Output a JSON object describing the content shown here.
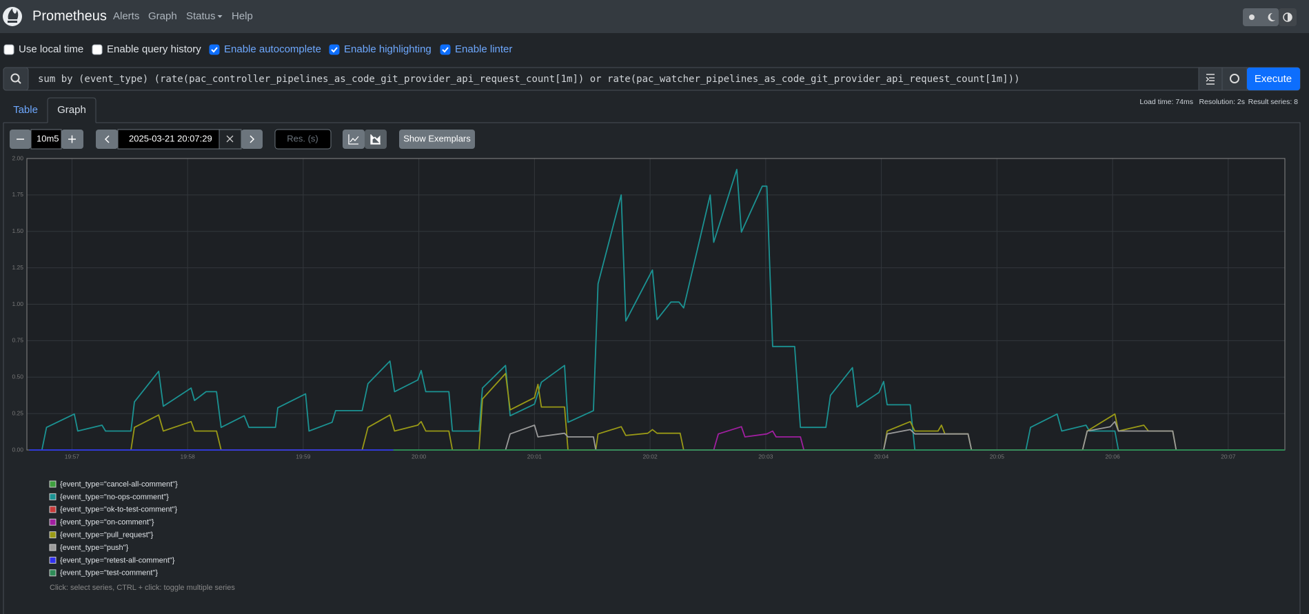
{
  "navbar": {
    "brand": "Prometheus",
    "links": [
      "Alerts",
      "Graph",
      "Status",
      "Help"
    ]
  },
  "options": [
    {
      "label": "Use local time",
      "checked": false
    },
    {
      "label": "Enable query history",
      "checked": false
    },
    {
      "label": "Enable autocomplete",
      "checked": true
    },
    {
      "label": "Enable highlighting",
      "checked": true
    },
    {
      "label": "Enable linter",
      "checked": true
    }
  ],
  "query": "sum by (event_type) (rate(pac_controller_pipelines_as_code_git_provider_api_request_count[1m]) or rate(pac_watcher_pipelines_as_code_git_provider_api_request_count[1m]))",
  "execute": "Execute",
  "tabs": [
    "Table",
    "Graph"
  ],
  "active_tab": 1,
  "stats": [
    "Load time: 74ms",
    "Resolution: 2s",
    "Result series: 8"
  ],
  "controls": {
    "range": "10m5",
    "end_time": "2025-03-21 20:07:29",
    "resolution_placeholder": "Res. (s)",
    "exemplars": "Show Exemplars"
  },
  "chart_data": {
    "type": "line",
    "xlim": [
      0.61,
      11.49
    ],
    "xticks": [
      {
        "value": 1,
        "label": "19:57"
      },
      {
        "value": 2,
        "label": "19:58"
      },
      {
        "value": 3,
        "label": "19:59"
      },
      {
        "value": 4,
        "label": "20:00"
      },
      {
        "value": 5,
        "label": "20:01"
      },
      {
        "value": 6,
        "label": "20:02"
      },
      {
        "value": 7,
        "label": "20:03"
      },
      {
        "value": 8,
        "label": "20:04"
      },
      {
        "value": 9,
        "label": "20:05"
      },
      {
        "value": 10,
        "label": "20:06"
      },
      {
        "value": 11,
        "label": "20:07"
      }
    ],
    "ylim": [
      0,
      2
    ],
    "yticks": [
      {
        "value": 0,
        "label": "0.00"
      },
      {
        "value": 0.25,
        "label": "0.25"
      },
      {
        "value": 0.5,
        "label": "0.50"
      },
      {
        "value": 0.75,
        "label": "0.75"
      },
      {
        "value": 1,
        "label": "1.00"
      },
      {
        "value": 1.25,
        "label": "1.25"
      },
      {
        "value": 1.5,
        "label": "1.50"
      },
      {
        "value": 1.75,
        "label": "1.75"
      },
      {
        "value": 2,
        "label": "2.00"
      }
    ],
    "grid": true,
    "series": [
      {
        "name": "{event_type=\"cancel-all-comment\"}",
        "color": "#3f9f3f",
        "x": [
          0.63,
          11.49
        ],
        "values": [
          0,
          0
        ]
      },
      {
        "name": "{event_type=\"no-ops-comment\"}",
        "color": "#1b9393",
        "x": [
          0.74,
          0.78,
          1.02,
          1.05,
          1.26,
          1.29,
          1.51,
          1.54,
          1.75,
          1.79,
          2.03,
          2.06,
          2.16,
          2.25,
          2.29,
          2.49,
          2.53,
          2.76,
          2.78,
          3.02,
          3.05,
          3.25,
          3.28,
          3.51,
          3.56,
          3.75,
          3.79,
          3.99,
          4.02,
          4.06,
          4.26,
          4.29,
          4.52,
          4.55,
          4.75,
          4.79,
          5.0,
          5.06,
          5.26,
          5.29,
          5.51,
          5.55,
          5.75,
          5.79,
          6.02,
          6.06,
          6.18,
          6.25,
          6.29,
          6.52,
          6.55,
          6.75,
          6.79,
          6.97,
          7.01,
          7.06,
          7.25,
          7.3,
          7.52,
          7.56,
          7.75,
          7.79,
          7.98,
          8.02,
          8.05,
          8.25,
          8.29,
          9.25,
          9.29,
          9.52,
          9.56,
          9.77,
          9.8,
          10.02,
          10.05
        ],
        "values": [
          0,
          0.155,
          0.247,
          0.13,
          0.17,
          0.13,
          0.13,
          0.33,
          0.54,
          0.3,
          0.425,
          0.34,
          0.4,
          0.4,
          0.155,
          0.235,
          0.155,
          0.155,
          0.29,
          0.385,
          0.13,
          0.19,
          0.27,
          0.27,
          0.455,
          0.61,
          0.4,
          0.48,
          0.545,
          0.4,
          0.4,
          0.13,
          0.13,
          0.425,
          0.58,
          0.235,
          0.315,
          0.465,
          0.58,
          0.19,
          0.27,
          1.14,
          1.75,
          0.885,
          1.235,
          0.895,
          1.015,
          1.015,
          0.975,
          1.75,
          1.425,
          1.925,
          1.495,
          1.81,
          1.81,
          0.71,
          0.71,
          0.155,
          0.155,
          0.375,
          0.565,
          0.295,
          0.395,
          0.47,
          0.31,
          0.31,
          0,
          0,
          0.155,
          0.247,
          0.13,
          0.17,
          0.13,
          0.13,
          0
        ]
      },
      {
        "name": "{event_type=\"ok-to-test-comment\"}",
        "color": "#c83a3a",
        "x": [],
        "values": []
      },
      {
        "name": "{event_type=\"on-comment\"}",
        "color": "#a11fa1",
        "x": [
          6.55,
          6.59,
          6.79,
          6.82,
          7.01,
          7.06,
          7.09,
          7.3,
          7.33
        ],
        "values": [
          0,
          0.11,
          0.16,
          0.09,
          0.11,
          0.13,
          0.09,
          0.09,
          0
        ]
      },
      {
        "name": "{event_type=\"pull_request\"}",
        "color": "#9a9a16",
        "x": [
          1.51,
          1.54,
          1.75,
          1.79,
          2.03,
          2.06,
          2.25,
          2.29,
          3.51,
          3.56,
          3.75,
          3.79,
          3.99,
          4.02,
          4.06,
          4.26,
          4.29,
          4.52,
          4.55,
          4.75,
          4.79,
          5.0,
          5.03,
          5.06,
          5.26,
          5.29,
          5.53,
          5.55,
          5.75,
          5.79,
          5.98,
          6.02,
          6.06,
          6.26,
          6.29,
          8.02,
          8.05,
          8.25,
          8.29,
          8.49,
          8.52,
          8.55,
          8.75,
          8.78,
          9.74,
          9.78,
          10.02,
          10.05,
          10.27,
          10.31,
          10.52,
          10.55
        ],
        "values": [
          0,
          0.155,
          0.24,
          0.13,
          0.195,
          0.13,
          0.13,
          0,
          0,
          0.155,
          0.24,
          0.13,
          0.17,
          0.195,
          0.13,
          0.13,
          0,
          0,
          0.35,
          0.525,
          0.275,
          0.36,
          0.45,
          0.295,
          0.295,
          0,
          0,
          0.11,
          0.16,
          0.1,
          0.115,
          0.14,
          0.115,
          0.115,
          0,
          0,
          0.13,
          0.195,
          0.13,
          0.13,
          0.17,
          0.11,
          0.11,
          0,
          0,
          0.13,
          0.247,
          0.13,
          0.17,
          0.13,
          0.13,
          0
        ]
      },
      {
        "name": "{event_type=\"push\"}",
        "color": "#9b9b9b",
        "x": [
          4.75,
          4.79,
          5.0,
          5.03,
          5.26,
          5.29,
          5.51,
          5.53,
          8.02,
          8.05,
          8.25,
          8.29,
          8.75,
          8.78,
          9.74,
          9.78,
          9.98,
          10.02,
          10.05,
          10.52,
          10.55
        ],
        "values": [
          0,
          0.11,
          0.17,
          0.09,
          0.115,
          0.09,
          0.09,
          0,
          0,
          0.11,
          0.14,
          0.11,
          0.11,
          0,
          0,
          0.13,
          0.16,
          0.195,
          0.13,
          0.13,
          0
        ]
      },
      {
        "name": "{event_type=\"retest-all-comment\"}",
        "color": "#3030ee",
        "x": [
          0.63,
          3.78
        ],
        "values": [
          0,
          0
        ]
      },
      {
        "name": "{event_type=\"test-comment\"}",
        "color": "#2e8b57",
        "x": [
          3.78,
          11.49
        ],
        "values": [
          0,
          0
        ]
      }
    ]
  },
  "hint": "Click: select series, CTRL + click: toggle multiple series"
}
